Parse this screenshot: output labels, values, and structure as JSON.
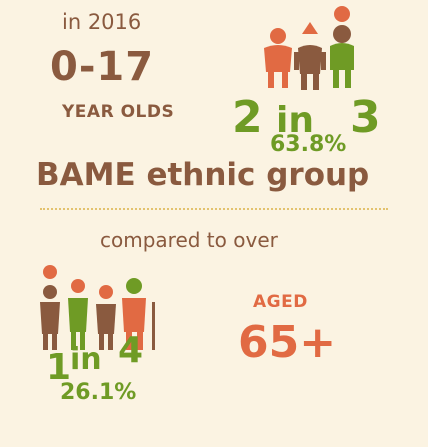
{
  "intro": {
    "year_text": "in 2016",
    "age_range": "0-17",
    "group_label": "YEAR OLDS"
  },
  "bame_stat": {
    "ratio_numerator": "2",
    "ratio_word": "in",
    "ratio_denominator": "3",
    "percentage": "63.8%",
    "caption": "BAME ethnic group",
    "icon": "family-of-three-icon"
  },
  "comparison": {
    "caption": "compared to over",
    "aged_label": "AGED",
    "age_threshold": "65+",
    "ratio_numerator": "1",
    "ratio_word": "in",
    "ratio_denominator": "4",
    "percentage": "26.1%",
    "icon": "group-of-four-icon"
  },
  "colors": {
    "background": "#fbf3e2",
    "brown": "#8a5a3f",
    "orange": "#e16a43",
    "green": "#6f9b25",
    "dots": "#e3c26e"
  }
}
